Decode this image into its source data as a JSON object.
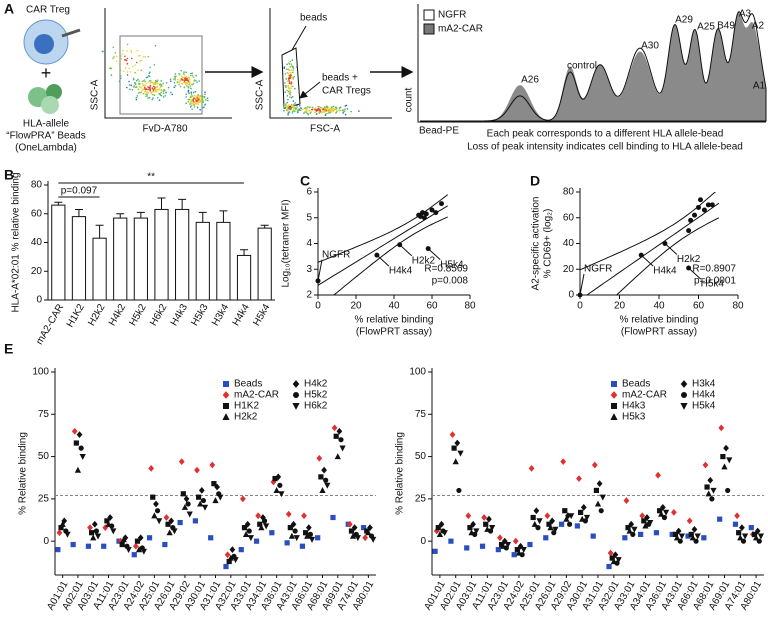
{
  "panel_a": {
    "label": "A",
    "car_treg": "CAR Treg",
    "plus": "+",
    "bead_lines": [
      "HLA-allele",
      "“FlowPRA” Beads",
      "(OneLambda)"
    ],
    "plot1": {
      "ylabel": "SSC-A",
      "xlabel": "FvD-A780"
    },
    "plot2": {
      "ylabel": "SSC-A",
      "xlabel": "FSC-A",
      "gate_label": "beads",
      "cells_label": [
        "beads +",
        "CAR Tregs"
      ]
    },
    "histogram": {
      "ylabel": "count",
      "xlabel": "Bead-PE",
      "legend": [
        "NGFR",
        "mA2-CAR"
      ],
      "peaks": [
        "A26",
        "control",
        "A30",
        "A29",
        "A25",
        "B49",
        "A3",
        "A2",
        "A1"
      ],
      "caption": [
        "Each peak corresponds to a different HLA allele-bead",
        "Loss of peak intensity indicates cell binding to HLA allele-bead"
      ]
    }
  },
  "chart_data": [
    {
      "type": "bar",
      "panel": "B",
      "ylabel": "HLA-A*02:01 % relative binding",
      "color": "#ffffff",
      "categories": [
        "mA2-CAR",
        "H1K2",
        "H2k2",
        "H4k2",
        "H5k2",
        "H6k2",
        "H4k3",
        "H5k3",
        "H3k4",
        "H4k4",
        "H5k4"
      ],
      "values": [
        66,
        58,
        43,
        57,
        57,
        63,
        63,
        54,
        54,
        31,
        50
      ],
      "errors": [
        2,
        5,
        9,
        3,
        4,
        8,
        7,
        7,
        8,
        4,
        2
      ],
      "ylim": [
        0,
        80
      ],
      "yticks": [
        0,
        20,
        40,
        60,
        80
      ],
      "brackets": [
        {
          "label": "p=0.097",
          "between": [
            "mA2-CAR",
            "H2k2"
          ]
        },
        {
          "label": "**",
          "between": [
            "mA2-CAR",
            "H4k4"
          ]
        }
      ]
    },
    {
      "type": "scatter",
      "panel": "C",
      "ylabel": [
        "Log₁₀(tetramer MFI)"
      ],
      "xlabel": [
        "% relative binding",
        "(FlowPRT assay)"
      ],
      "fit": "linear",
      "x": [
        0,
        31,
        43,
        58,
        53,
        54,
        55,
        56,
        57,
        60,
        62,
        65
      ],
      "y": [
        2.55,
        3.55,
        3.95,
        3.8,
        5.1,
        5.05,
        5.2,
        5.0,
        5.15,
        5.3,
        5.2,
        5.55
      ],
      "point_labels": [
        "NGFR",
        "H4k4",
        "H2k2",
        "H5k4",
        null,
        null,
        null,
        null,
        null,
        null,
        null,
        null
      ],
      "xlim": [
        0,
        80
      ],
      "xticks": [
        0,
        20,
        40,
        60,
        80
      ],
      "ylim": [
        2,
        6
      ],
      "yticks": [
        2,
        3,
        4,
        5,
        6
      ],
      "annotations": [
        "R=0.8569",
        "p=0.008"
      ]
    },
    {
      "type": "scatter",
      "panel": "D",
      "ylabel": [
        "A2-specific activation",
        "% CD69+ (log₂)"
      ],
      "xlabel": [
        "% relative binding",
        "(FlowPRT assay)"
      ],
      "fit": "linear",
      "x": [
        0,
        31,
        43,
        55,
        55,
        56,
        58,
        60,
        61,
        63,
        65,
        67
      ],
      "y": [
        0,
        31,
        40,
        21,
        50,
        58,
        62,
        68,
        74,
        66,
        70,
        70
      ],
      "point_labels": [
        "NGFR",
        "H4k4",
        "H2k2",
        "H5k4",
        null,
        null,
        null,
        null,
        null,
        null,
        null,
        null
      ],
      "xlim": [
        0,
        80
      ],
      "xticks": [
        0,
        20,
        40,
        60,
        80
      ],
      "ylim": [
        0,
        80
      ],
      "yticks": [
        0,
        20,
        40,
        60,
        80
      ],
      "annotations": [
        "R=0.8907",
        "p=0.0001"
      ]
    },
    {
      "type": "strip",
      "panel": "E",
      "ylabel": "% Relative binding",
      "legend": "top-right",
      "hline": 27,
      "categories": [
        "A01:01",
        "A02:01",
        "A03:01",
        "A11:01",
        "A23:01",
        "A24:02",
        "A25:01",
        "A26:01",
        "A29:02",
        "A30:01",
        "A31:01",
        "A32:01",
        "A33:01",
        "A34:01",
        "A36:01",
        "A43:01",
        "A66:01",
        "A68:01",
        "A69:01",
        "A74:01",
        "A80:01"
      ],
      "ylim": [
        -20,
        100
      ],
      "yticks": [
        0,
        25,
        50,
        75,
        100
      ],
      "series": [
        {
          "name": "Beads",
          "color": "#2a4ebf",
          "marker": "square",
          "values": [
            -5,
            -2,
            -3,
            -3,
            0,
            -8,
            2,
            -2,
            11,
            12,
            2,
            -15,
            -5,
            0,
            5,
            -1,
            -3,
            2,
            14,
            10,
            8
          ]
        },
        {
          "name": "mA2-CAR",
          "color": "#e03030",
          "marker": "diamond",
          "values": [
            5,
            65,
            8,
            8,
            0,
            -3,
            43,
            14,
            47,
            42,
            45,
            -8,
            25,
            15,
            35,
            16,
            15,
            49,
            67,
            10,
            2
          ]
        },
        {
          "name": "H1K2",
          "color": "#111111",
          "marker": "square",
          "values": [
            8,
            58,
            5,
            12,
            -2,
            0,
            26,
            10,
            28,
            26,
            34,
            -12,
            8,
            10,
            37,
            8,
            5,
            38,
            62,
            6,
            6
          ]
        },
        {
          "name": "H2k2",
          "color": "#111111",
          "marker": "triangle",
          "values": [
            10,
            42,
            2,
            10,
            1,
            -5,
            15,
            5,
            20,
            22,
            24,
            -10,
            4,
            8,
            30,
            3,
            3,
            30,
            50,
            3,
            5
          ]
        },
        {
          "name": "H4k2",
          "color": "#111111",
          "marker": "diamond",
          "values": [
            12,
            63,
            10,
            14,
            2,
            2,
            22,
            12,
            25,
            30,
            32,
            -5,
            10,
            14,
            38,
            10,
            8,
            42,
            65,
            8,
            8
          ]
        },
        {
          "name": "H5k2",
          "color": "#111111",
          "marker": "circle",
          "values": [
            6,
            55,
            6,
            9,
            -3,
            -4,
            18,
            8,
            22,
            24,
            28,
            -9,
            6,
            12,
            33,
            6,
            4,
            36,
            60,
            4,
            3
          ]
        },
        {
          "name": "H6k2",
          "color": "#111111",
          "marker": "triangle-down",
          "values": [
            4,
            50,
            3,
            6,
            -5,
            -6,
            12,
            6,
            16,
            20,
            26,
            -11,
            2,
            9,
            28,
            2,
            1,
            33,
            55,
            2,
            1
          ]
        }
      ]
    },
    {
      "type": "strip",
      "ylabel": "% Relative binding",
      "legend": "top-right",
      "hline": 27,
      "categories": [
        "A01:01",
        "A02:01",
        "A03:01",
        "A11:01",
        "A23:01",
        "A24:02",
        "A25:01",
        "A26:01",
        "A29:02",
        "A30:01",
        "A31:01",
        "A32:01",
        "A33:01",
        "A34:01",
        "A36:01",
        "A43:01",
        "A66:01",
        "A68:01",
        "A69:01",
        "A74:01",
        "A80:01"
      ],
      "ylim": [
        -20,
        100
      ],
      "yticks": [
        0,
        25,
        50,
        75,
        100
      ],
      "series": [
        {
          "name": "Beads",
          "color": "#2a4ebf",
          "marker": "square",
          "values": [
            -6,
            0,
            -4,
            -3,
            -5,
            -8,
            -2,
            2,
            10,
            9,
            3,
            -15,
            2,
            4,
            5,
            4,
            3,
            2,
            13,
            10,
            8
          ]
        },
        {
          "name": "mA2-CAR",
          "color": "#e03030",
          "marker": "diamond",
          "values": [
            6,
            63,
            15,
            14,
            2,
            0,
            43,
            15,
            47,
            37,
            45,
            -7,
            24,
            15,
            39,
            17,
            12,
            45,
            67,
            15,
            4
          ]
        },
        {
          "name": "H4k3",
          "color": "#111111",
          "marker": "square",
          "values": [
            8,
            55,
            8,
            10,
            -2,
            -5,
            14,
            10,
            18,
            17,
            30,
            -10,
            8,
            12,
            18,
            4,
            4,
            32,
            50,
            5,
            4
          ]
        },
        {
          "name": "H5k3",
          "color": "#111111",
          "marker": "triangle",
          "values": [
            4,
            47,
            5,
            7,
            -3,
            -7,
            10,
            8,
            13,
            13,
            22,
            -12,
            6,
            9,
            16,
            2,
            2,
            28,
            44,
            2,
            2
          ]
        },
        {
          "name": "H3k4",
          "color": "#111111",
          "marker": "diamond",
          "values": [
            10,
            58,
            10,
            13,
            0,
            -3,
            18,
            12,
            15,
            20,
            34,
            -8,
            10,
            14,
            20,
            6,
            7,
            36,
            55,
            8,
            6
          ]
        },
        {
          "name": "H4k4",
          "color": "#111111",
          "marker": "circle",
          "values": [
            6,
            30,
            4,
            6,
            -4,
            -8,
            8,
            5,
            10,
            12,
            18,
            -13,
            4,
            10,
            14,
            0,
            0,
            25,
            30,
            0,
            0
          ]
        },
        {
          "name": "H5k4",
          "color": "#111111",
          "marker": "triangle-down",
          "values": [
            5,
            52,
            6,
            8,
            -2,
            -5,
            12,
            7,
            15,
            14,
            26,
            -11,
            7,
            11,
            17,
            3,
            3,
            30,
            48,
            3,
            3
          ]
        }
      ]
    }
  ]
}
